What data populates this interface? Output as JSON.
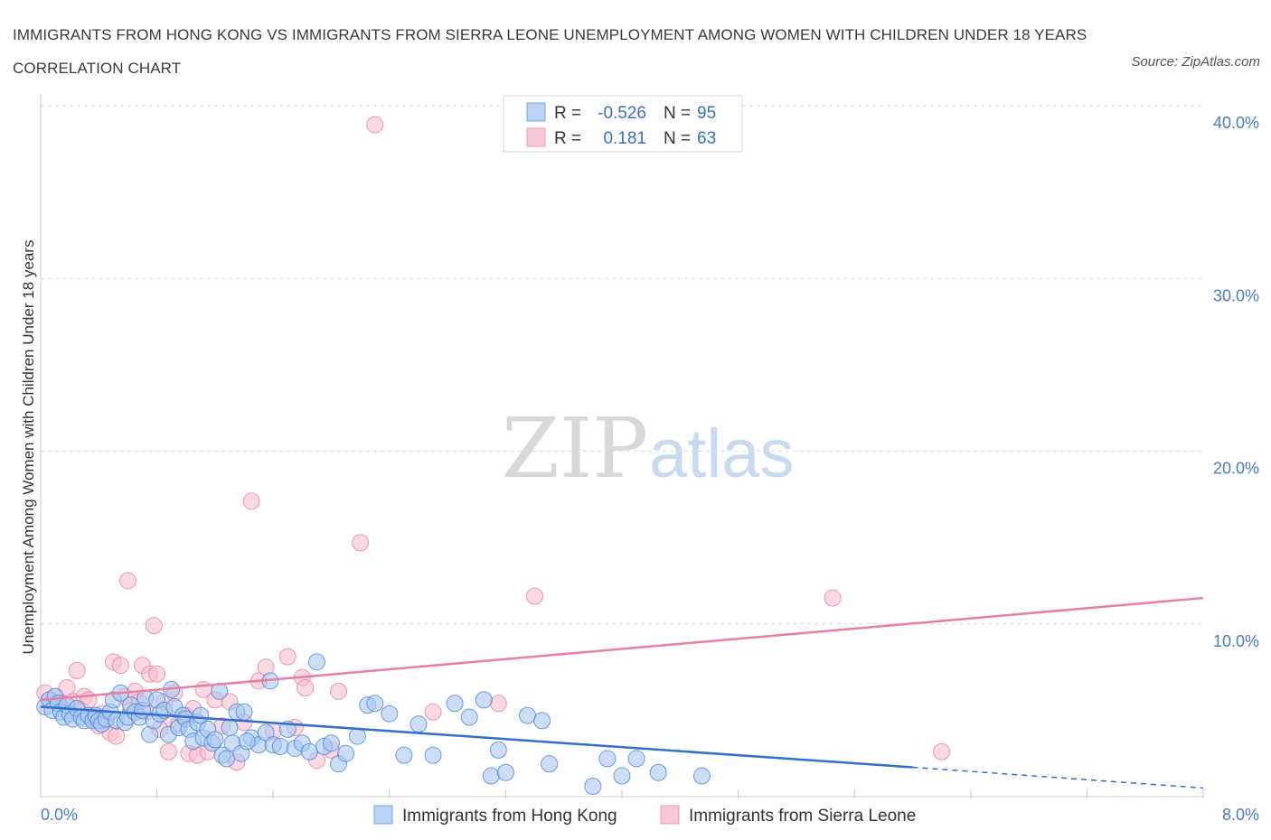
{
  "title": "IMMIGRANTS FROM HONG KONG VS IMMIGRANTS FROM SIERRA LEONE UNEMPLOYMENT AMONG WOMEN WITH CHILDREN UNDER 18 YEARS CORRELATION CHART",
  "source": "Source: ZipAtlas.com",
  "watermark": {
    "zip": "ZIP",
    "atlas": "atlas"
  },
  "legend": {
    "r_label": "R =",
    "n_label": "N =",
    "series": [
      {
        "r": "-0.526",
        "n": "95"
      },
      {
        "r": "0.181",
        "n": "63"
      }
    ]
  },
  "bottom_legend": [
    "Immigrants from Hong Kong",
    "Immigrants from Sierra Leone"
  ],
  "chart_data": {
    "type": "scatter",
    "ylabel": "Unemployment Among Women with Children Under 18 years",
    "xlabel": "",
    "xlim": [
      0,
      8
    ],
    "ylim": [
      0,
      40
    ],
    "x_tick_labels": [
      "0.0%",
      "8.0%"
    ],
    "y_ticks": [
      10,
      20,
      30,
      40
    ],
    "y_tick_labels": [
      "10.0%",
      "20.0%",
      "30.0%",
      "40.0%"
    ],
    "grid": true,
    "colors": {
      "hong_kong": "#4a86d8",
      "sierra_leone": "#e87fa2",
      "hk_fill": "#a9c8f0",
      "sl_fill": "#f6bfd0"
    },
    "series": [
      {
        "name": "Immigrants from Hong Kong",
        "trend": {
          "x0": 0,
          "y0": 5.2,
          "x1": 6.0,
          "y1": 1.7,
          "dash_x1": 8.0,
          "dash_y1": 0.5
        },
        "points": [
          [
            0.03,
            5.2
          ],
          [
            0.06,
            5.6
          ],
          [
            0.08,
            5.0
          ],
          [
            0.1,
            5.8
          ],
          [
            0.12,
            5.4
          ],
          [
            0.14,
            4.9
          ],
          [
            0.16,
            4.6
          ],
          [
            0.18,
            5.3
          ],
          [
            0.2,
            4.8
          ],
          [
            0.22,
            4.5
          ],
          [
            0.25,
            5.1
          ],
          [
            0.28,
            4.6
          ],
          [
            0.3,
            4.4
          ],
          [
            0.33,
            4.7
          ],
          [
            0.36,
            4.4
          ],
          [
            0.38,
            4.7
          ],
          [
            0.4,
            4.4
          ],
          [
            0.42,
            4.2
          ],
          [
            0.45,
            4.5
          ],
          [
            0.48,
            4.9
          ],
          [
            0.5,
            5.6
          ],
          [
            0.52,
            4.4
          ],
          [
            0.55,
            6.0
          ],
          [
            0.58,
            4.3
          ],
          [
            0.6,
            4.6
          ],
          [
            0.62,
            5.3
          ],
          [
            0.65,
            4.9
          ],
          [
            0.68,
            4.6
          ],
          [
            0.7,
            5.0
          ],
          [
            0.72,
            5.7
          ],
          [
            0.75,
            3.6
          ],
          [
            0.78,
            4.4
          ],
          [
            0.8,
            5.6
          ],
          [
            0.82,
            4.8
          ],
          [
            0.85,
            5.0
          ],
          [
            0.88,
            3.6
          ],
          [
            0.9,
            6.2
          ],
          [
            0.92,
            5.2
          ],
          [
            0.95,
            4.0
          ],
          [
            0.98,
            4.7
          ],
          [
            1.0,
            4.5
          ],
          [
            1.02,
            3.9
          ],
          [
            1.05,
            3.2
          ],
          [
            1.08,
            4.3
          ],
          [
            1.1,
            4.7
          ],
          [
            1.12,
            3.4
          ],
          [
            1.15,
            3.9
          ],
          [
            1.18,
            3.1
          ],
          [
            1.2,
            3.3
          ],
          [
            1.23,
            6.1
          ],
          [
            1.25,
            2.4
          ],
          [
            1.28,
            2.2
          ],
          [
            1.3,
            4.0
          ],
          [
            1.32,
            3.1
          ],
          [
            1.35,
            4.9
          ],
          [
            1.38,
            2.5
          ],
          [
            1.4,
            4.9
          ],
          [
            1.45,
            3.4
          ],
          [
            1.5,
            3.0
          ],
          [
            1.55,
            3.7
          ],
          [
            1.58,
            6.7
          ],
          [
            1.6,
            3.0
          ],
          [
            1.65,
            2.9
          ],
          [
            1.7,
            3.9
          ],
          [
            1.75,
            2.8
          ],
          [
            1.8,
            3.1
          ],
          [
            1.85,
            2.6
          ],
          [
            1.9,
            7.8
          ],
          [
            1.95,
            2.9
          ],
          [
            2.0,
            3.1
          ],
          [
            2.05,
            1.9
          ],
          [
            2.1,
            2.5
          ],
          [
            2.18,
            3.5
          ],
          [
            2.25,
            5.3
          ],
          [
            2.3,
            5.4
          ],
          [
            2.4,
            4.8
          ],
          [
            2.5,
            2.4
          ],
          [
            2.6,
            4.2
          ],
          [
            2.7,
            2.4
          ],
          [
            2.85,
            5.4
          ],
          [
            2.95,
            4.6
          ],
          [
            3.05,
            5.6
          ],
          [
            3.1,
            1.2
          ],
          [
            3.2,
            1.4
          ],
          [
            3.35,
            4.7
          ],
          [
            3.45,
            4.4
          ],
          [
            3.5,
            1.9
          ],
          [
            3.8,
            0.6
          ],
          [
            3.9,
            2.2
          ],
          [
            4.0,
            1.2
          ],
          [
            4.1,
            2.2
          ],
          [
            4.25,
            1.4
          ],
          [
            4.55,
            1.2
          ],
          [
            3.15,
            2.7
          ],
          [
            1.42,
            3.2
          ]
        ]
      },
      {
        "name": "Immigrants from Sierra Leone",
        "trend": {
          "x0": 0,
          "y0": 5.6,
          "x1": 8.0,
          "y1": 11.5
        },
        "points": [
          [
            0.03,
            6.0
          ],
          [
            0.06,
            5.6
          ],
          [
            0.1,
            5.8
          ],
          [
            0.15,
            5.4
          ],
          [
            0.18,
            6.3
          ],
          [
            0.22,
            5.5
          ],
          [
            0.25,
            7.3
          ],
          [
            0.28,
            5.0
          ],
          [
            0.3,
            5.8
          ],
          [
            0.33,
            5.6
          ],
          [
            0.36,
            4.5
          ],
          [
            0.4,
            4.1
          ],
          [
            0.42,
            4.8
          ],
          [
            0.45,
            4.4
          ],
          [
            0.48,
            3.7
          ],
          [
            0.5,
            7.8
          ],
          [
            0.52,
            3.5
          ],
          [
            0.55,
            7.6
          ],
          [
            0.58,
            5.8
          ],
          [
            0.6,
            12.5
          ],
          [
            0.62,
            5.0
          ],
          [
            0.65,
            6.1
          ],
          [
            0.68,
            5.5
          ],
          [
            0.7,
            7.6
          ],
          [
            0.72,
            4.9
          ],
          [
            0.75,
            7.1
          ],
          [
            0.78,
            9.9
          ],
          [
            0.8,
            7.1
          ],
          [
            0.82,
            3.9
          ],
          [
            0.85,
            5.5
          ],
          [
            0.88,
            2.6
          ],
          [
            0.9,
            4.5
          ],
          [
            0.92,
            6.0
          ],
          [
            0.95,
            4.2
          ],
          [
            1.0,
            4.7
          ],
          [
            1.02,
            2.5
          ],
          [
            1.05,
            5.1
          ],
          [
            1.08,
            2.4
          ],
          [
            1.12,
            6.2
          ],
          [
            1.15,
            2.6
          ],
          [
            1.2,
            5.6
          ],
          [
            1.25,
            4.1
          ],
          [
            1.3,
            5.5
          ],
          [
            1.35,
            2.0
          ],
          [
            1.4,
            4.3
          ],
          [
            1.45,
            17.1
          ],
          [
            1.5,
            6.7
          ],
          [
            1.55,
            7.5
          ],
          [
            1.6,
            3.8
          ],
          [
            1.7,
            8.1
          ],
          [
            1.75,
            4.0
          ],
          [
            1.8,
            6.9
          ],
          [
            1.9,
            2.1
          ],
          [
            2.0,
            2.7
          ],
          [
            2.05,
            6.1
          ],
          [
            2.2,
            14.7
          ],
          [
            2.3,
            38.9
          ],
          [
            2.7,
            4.9
          ],
          [
            3.15,
            5.4
          ],
          [
            3.4,
            11.6
          ],
          [
            5.45,
            11.5
          ],
          [
            6.2,
            2.6
          ],
          [
            1.82,
            6.3
          ]
        ]
      }
    ]
  }
}
